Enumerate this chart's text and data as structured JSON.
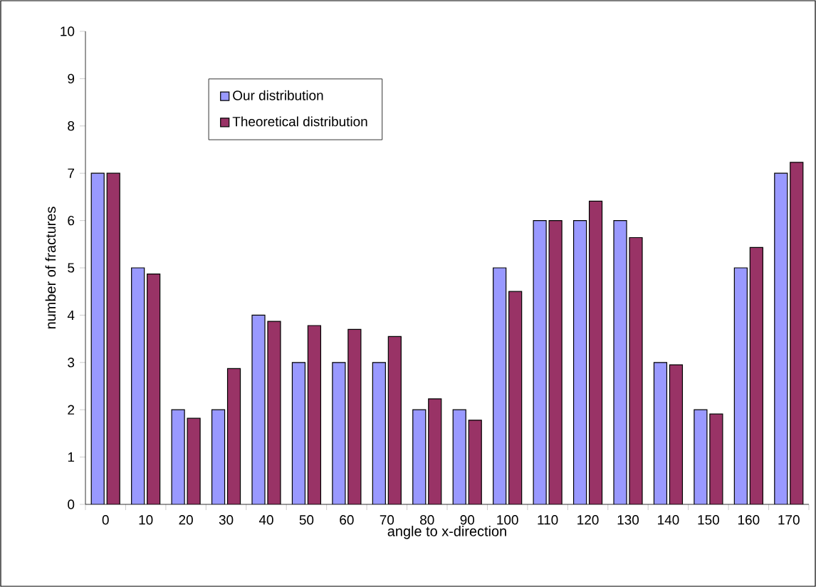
{
  "chart_data": {
    "type": "bar",
    "xlabel": "angle to x-direction",
    "ylabel": "number of fractures",
    "categories": [
      "0",
      "10",
      "20",
      "30",
      "40",
      "50",
      "60",
      "70",
      "80",
      "90",
      "100",
      "110",
      "120",
      "130",
      "140",
      "150",
      "160",
      "170"
    ],
    "series": [
      {
        "name": "Our distribution",
        "color": "#9999ff",
        "values": [
          7,
          5,
          2,
          2,
          4,
          3,
          3,
          3,
          2,
          2,
          5,
          6,
          6,
          6,
          3,
          2,
          5,
          7
        ]
      },
      {
        "name": "Theoretical distribution",
        "color": "#993366",
        "values": [
          7,
          4.87,
          1.82,
          2.87,
          3.87,
          3.78,
          3.7,
          3.55,
          2.23,
          1.78,
          4.5,
          6,
          6.41,
          5.64,
          2.95,
          1.91,
          5.43,
          7.23
        ]
      }
    ],
    "ylim": [
      0,
      10
    ],
    "yticks": [
      0,
      1,
      2,
      3,
      4,
      5,
      6,
      7,
      8,
      9,
      10
    ],
    "grid": false,
    "legend": "top left"
  }
}
